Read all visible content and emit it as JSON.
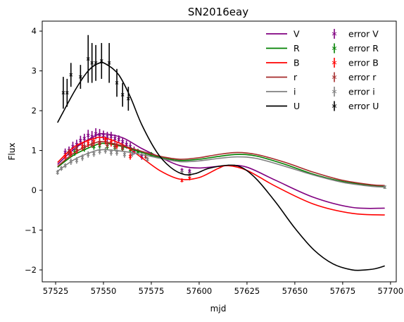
{
  "chart_data": {
    "type": "line",
    "title": "SN2016eay",
    "xlabel": "mjd",
    "ylabel": "Flux",
    "xlim": [
      57518,
      57703
    ],
    "ylim": [
      -2.3,
      4.25
    ],
    "xticks": [
      57525,
      57550,
      57575,
      57600,
      57625,
      57650,
      57675,
      57700
    ],
    "yticks": [
      -2,
      -1,
      0,
      1,
      2,
      3,
      4
    ],
    "grid": false,
    "legend_position": "top-right",
    "legend_columns": 2,
    "fit_x_range": [
      57526,
      57697
    ],
    "series": [
      {
        "name": "V",
        "color": "#800080",
        "fit_x": [
          57526,
          57535,
          57545,
          57550,
          57560,
          57570,
          57580,
          57590,
          57600,
          57615,
          57625,
          57640,
          57660,
          57680,
          57697
        ],
        "fit_y": [
          0.65,
          1.05,
          1.35,
          1.42,
          1.32,
          1.05,
          0.82,
          0.62,
          0.56,
          0.62,
          0.58,
          0.25,
          -0.18,
          -0.43,
          -0.45
        ],
        "obs_x": [
          57530,
          57532,
          57534,
          57536,
          57538,
          57540,
          57542,
          57544,
          57546,
          57548,
          57550,
          57552,
          57554,
          57556,
          57558,
          57560,
          57562,
          57564,
          57566,
          57570,
          57591,
          57595
        ],
        "obs_y": [
          0.95,
          1.0,
          1.1,
          1.15,
          1.25,
          1.3,
          1.38,
          1.35,
          1.42,
          1.4,
          1.38,
          1.35,
          1.35,
          1.3,
          1.28,
          1.22,
          1.15,
          1.1,
          1.0,
          0.85,
          0.5,
          0.48
        ],
        "obs_err": [
          0.1,
          0.1,
          0.12,
          0.12,
          0.12,
          0.12,
          0.14,
          0.14,
          0.14,
          0.14,
          0.12,
          0.12,
          0.12,
          0.1,
          0.1,
          0.1,
          0.1,
          0.1,
          0.1,
          0.08,
          0.06,
          0.06
        ]
      },
      {
        "name": "R",
        "color": "#008000",
        "fit_x": [
          57526,
          57535,
          57545,
          57550,
          57560,
          57570,
          57580,
          57590,
          57600,
          57610,
          57620,
          57630,
          57645,
          57660,
          57675,
          57690,
          57697
        ],
        "fit_y": [
          0.58,
          0.9,
          1.12,
          1.18,
          1.1,
          0.95,
          0.82,
          0.75,
          0.78,
          0.85,
          0.9,
          0.86,
          0.65,
          0.4,
          0.22,
          0.12,
          0.1
        ],
        "obs_x": [
          57535,
          57540,
          57545,
          57548,
          57552,
          57556,
          57560,
          57564,
          57568,
          57575,
          57697
        ],
        "obs_y": [
          0.95,
          1.05,
          1.1,
          1.12,
          1.1,
          1.08,
          1.05,
          1.02,
          0.98,
          0.9,
          0.08
        ],
        "obs_err": [
          0.08,
          0.08,
          0.08,
          0.08,
          0.08,
          0.08,
          0.08,
          0.08,
          0.06,
          0.06,
          0.04
        ]
      },
      {
        "name": "B",
        "color": "#ff0000",
        "fit_x": [
          57526,
          57535,
          57545,
          57550,
          57560,
          57570,
          57580,
          57590,
          57600,
          57610,
          57615,
          57625,
          57640,
          57660,
          57680,
          57697
        ],
        "fit_y": [
          0.7,
          1.1,
          1.3,
          1.32,
          1.15,
          0.82,
          0.48,
          0.28,
          0.32,
          0.55,
          0.62,
          0.5,
          0.1,
          -0.35,
          -0.58,
          -0.62
        ],
        "obs_x": [
          57530,
          57533,
          57536,
          57539,
          57542,
          57545,
          57548,
          57551,
          57554,
          57557,
          57560,
          57564,
          57591,
          57595
        ],
        "obs_y": [
          0.85,
          0.92,
          1.0,
          1.1,
          1.18,
          1.22,
          1.2,
          1.25,
          1.2,
          1.12,
          1.08,
          0.85,
          0.25,
          0.3
        ],
        "obs_err": [
          0.08,
          0.08,
          0.08,
          0.1,
          0.1,
          0.1,
          0.1,
          0.1,
          0.1,
          0.08,
          0.08,
          0.08,
          0.05,
          0.05
        ]
      },
      {
        "name": "r",
        "color": "#a52a2a",
        "fit_x": [
          57526,
          57535,
          57545,
          57550,
          57560,
          57570,
          57580,
          57590,
          57600,
          57610,
          57620,
          57630,
          57645,
          57660,
          57675,
          57690,
          57697
        ],
        "fit_y": [
          0.6,
          0.95,
          1.18,
          1.22,
          1.12,
          0.98,
          0.85,
          0.78,
          0.82,
          0.9,
          0.95,
          0.9,
          0.7,
          0.45,
          0.25,
          0.14,
          0.12
        ],
        "obs_x": [
          57532,
          57536,
          57540,
          57544,
          57548,
          57552,
          57556,
          57560,
          57572
        ],
        "obs_y": [
          0.95,
          1.05,
          1.1,
          1.15,
          1.18,
          1.15,
          1.12,
          1.08,
          0.85
        ],
        "obs_err": [
          0.08,
          0.08,
          0.08,
          0.08,
          0.08,
          0.08,
          0.08,
          0.08,
          0.06
        ]
      },
      {
        "name": "i",
        "color": "#808080",
        "fit_x": [
          57526,
          57535,
          57545,
          57550,
          57560,
          57570,
          57580,
          57590,
          57600,
          57610,
          57620,
          57630,
          57645,
          57660,
          57675,
          57690,
          57697
        ],
        "fit_y": [
          0.48,
          0.78,
          0.98,
          1.02,
          0.98,
          0.9,
          0.8,
          0.72,
          0.74,
          0.8,
          0.84,
          0.8,
          0.6,
          0.38,
          0.2,
          0.1,
          0.08
        ],
        "obs_x": [
          57526,
          57528,
          57530,
          57533,
          57536,
          57539,
          57542,
          57545,
          57548,
          57551,
          57554,
          57557,
          57561,
          57565,
          57573,
          57591,
          57595,
          57697
        ],
        "obs_y": [
          0.45,
          0.55,
          0.62,
          0.72,
          0.75,
          0.82,
          0.9,
          0.92,
          0.98,
          1.0,
          0.95,
          0.95,
          0.9,
          0.92,
          0.78,
          0.45,
          0.4,
          0.08
        ],
        "obs_err": [
          0.06,
          0.06,
          0.06,
          0.08,
          0.08,
          0.08,
          0.08,
          0.08,
          0.08,
          0.08,
          0.08,
          0.08,
          0.08,
          0.08,
          0.06,
          0.05,
          0.05,
          0.04
        ]
      },
      {
        "name": "U",
        "color": "#000000",
        "fit_x": [
          57526,
          57535,
          57542,
          57548,
          57552,
          57558,
          57564,
          57570,
          57578,
          57585,
          57592,
          57598,
          57605,
          57615,
          57622,
          57630,
          57640,
          57650,
          57660,
          57670,
          57680,
          57687,
          57692,
          57697
        ],
        "fit_y": [
          1.7,
          2.5,
          3.0,
          3.2,
          3.15,
          2.9,
          2.35,
          1.65,
          0.95,
          0.58,
          0.4,
          0.42,
          0.55,
          0.63,
          0.58,
          0.28,
          -0.3,
          -0.95,
          -1.5,
          -1.85,
          -2.0,
          -2.0,
          -1.97,
          -1.9
        ],
        "obs_x": [
          57529,
          57531,
          57533,
          57538,
          57542,
          57544,
          57546,
          57549,
          57553,
          57557,
          57560,
          57563
        ],
        "obs_y": [
          2.45,
          2.45,
          2.9,
          2.85,
          3.3,
          3.2,
          3.2,
          3.25,
          3.2,
          2.7,
          2.4,
          2.3
        ],
        "obs_err": [
          0.4,
          0.35,
          0.3,
          0.3,
          0.6,
          0.5,
          0.45,
          0.45,
          0.5,
          0.35,
          0.3,
          0.3
        ]
      }
    ],
    "legend_line_labels": [
      "V",
      "R",
      "B",
      "r",
      "i",
      "U"
    ],
    "legend_error_labels": [
      "error V",
      "error R",
      "error B",
      "error r",
      "error i",
      "error U"
    ]
  }
}
